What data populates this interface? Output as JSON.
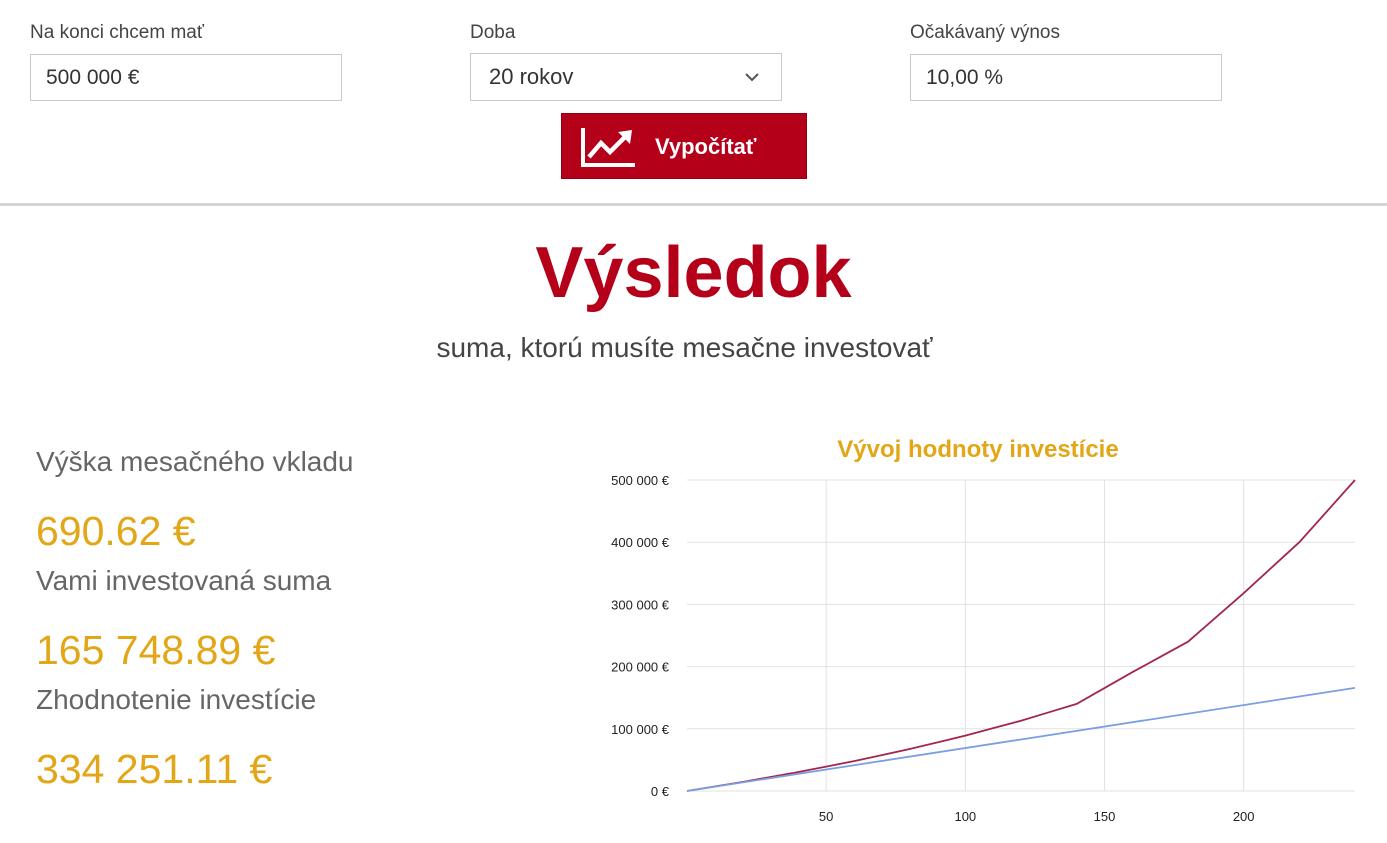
{
  "form": {
    "target": {
      "label": "Na konci chcem mať",
      "value": "500 000 €"
    },
    "period": {
      "label": "Doba",
      "value": "20 rokov"
    },
    "yield": {
      "label": "Očakávaný výnos",
      "value": "10,00 %"
    },
    "calculate_label": "Vypočítať"
  },
  "result": {
    "title": "Výsledok",
    "subtitle": "suma, ktorú musíte mesačne investovať",
    "stats": [
      {
        "label": "Výška mesačného vkladu",
        "value": "690.62 €"
      },
      {
        "label": "Vami investovaná suma",
        "value": "165 748.89 €"
      },
      {
        "label": "Zhodnotenie investície",
        "value": "334 251.11 €"
      }
    ]
  },
  "colors": {
    "accent": "#b5001a",
    "value": "#e2a617",
    "chart_title": "#e2a617",
    "series_value": "#a3264f",
    "series_invested": "#7b9fe0"
  },
  "icons": {
    "button": "trending-up-chart-icon",
    "select": "chevron-down-icon"
  },
  "chart_data": {
    "type": "line",
    "title": "Vývoj hodnoty investície",
    "xlabel": "",
    "ylabel": "",
    "xlim": [
      0,
      240
    ],
    "ylim": [
      0,
      500000
    ],
    "x_ticks": [
      "50",
      "100",
      "150",
      "200"
    ],
    "y_ticks": [
      "0 €",
      "100 000 €",
      "200 000 €",
      "300 000 €",
      "400 000 €",
      "500 000 €"
    ],
    "grid": true,
    "series": [
      {
        "values_x": [
          0,
          20,
          40,
          60,
          80,
          100,
          120,
          140,
          160,
          180,
          200,
          220,
          240
        ],
        "values_y": [
          0,
          14500,
          30500,
          48000,
          67500,
          89000,
          113000,
          140000,
          191000,
          240000,
          318000,
          400000,
          500000
        ]
      },
      {
        "values_x": [
          0,
          240
        ],
        "values_y": [
          0,
          165749
        ]
      }
    ]
  }
}
